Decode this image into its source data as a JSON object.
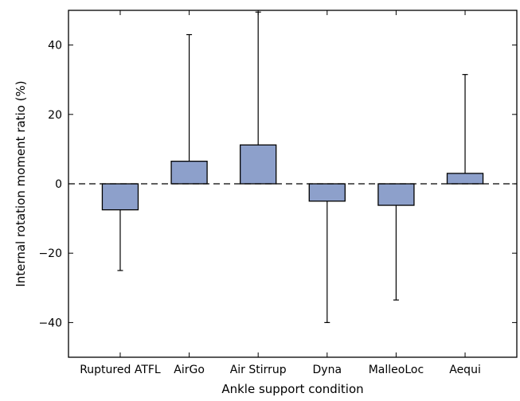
{
  "chart_data": {
    "type": "bar",
    "title": "",
    "xlabel": "Ankle support condition",
    "ylabel": "Internal rotation moment ratio (%)",
    "categories": [
      "Ruptured ATFL",
      "AirGo",
      "Air Stirrup",
      "Dyna",
      "MalleoLoc",
      "Aequi"
    ],
    "values": [
      -7.5,
      6.5,
      11.2,
      -5.0,
      -6.2,
      3.0
    ],
    "error_bars": [
      {
        "direction": "down",
        "end": -25
      },
      {
        "direction": "up",
        "end": 43
      },
      {
        "direction": "up",
        "end": 49.5
      },
      {
        "direction": "down",
        "end": -40
      },
      {
        "direction": "down",
        "end": -33.5
      },
      {
        "direction": "up",
        "end": 31.5
      }
    ],
    "ylim": [
      -50,
      50
    ],
    "yticks": [
      -40,
      -20,
      0,
      20,
      40
    ],
    "reference_line": {
      "y": 0,
      "style": "dashed"
    },
    "grid": false,
    "legend": "none",
    "colors": {
      "bar_fill": "#8DA0CB",
      "bar_edge": "#000000",
      "axis": "#000000",
      "background": "#FFFFFF"
    }
  }
}
